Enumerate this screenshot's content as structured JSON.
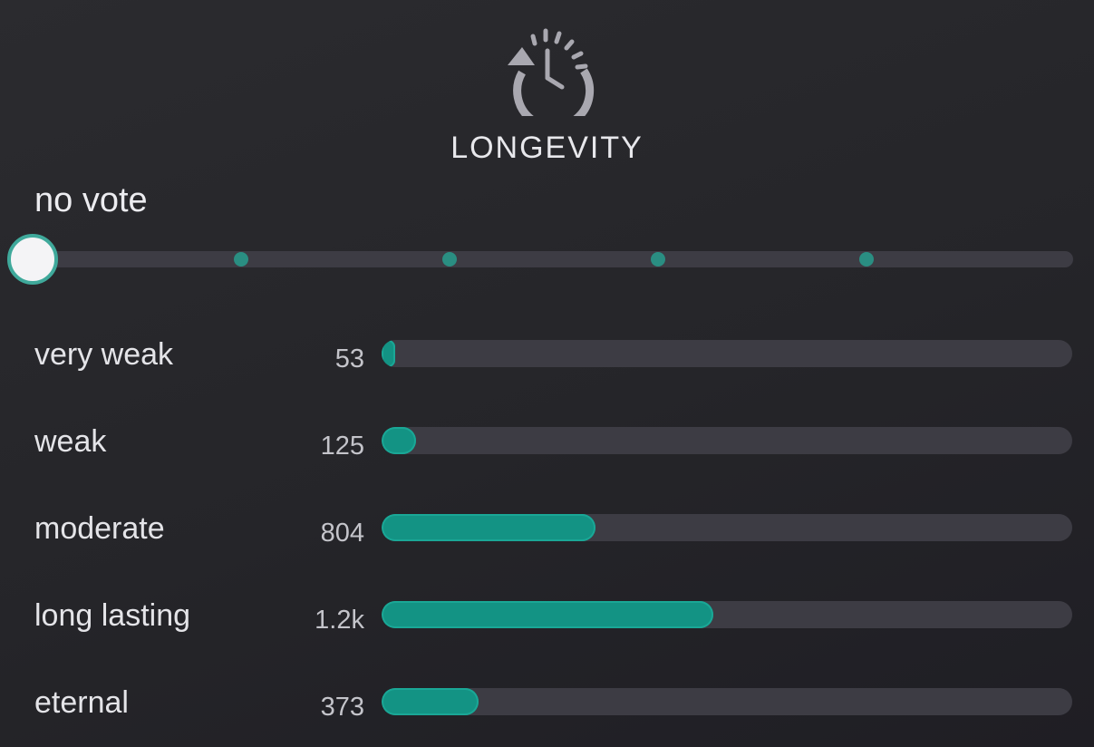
{
  "header": {
    "title": "LONGEVITY",
    "icon": "clock-refresh-icon",
    "icon_color": "#a9a8b0"
  },
  "vote": {
    "label": "no vote",
    "selected_step": 0,
    "steps": 5
  },
  "accent_color": "#139384",
  "ratings": [
    {
      "label": "very weak",
      "count": "53",
      "fill": 0.02
    },
    {
      "label": "weak",
      "count": "125",
      "fill": 0.05
    },
    {
      "label": "moderate",
      "count": "804",
      "fill": 0.31
    },
    {
      "label": "long lasting",
      "count": "1.2k",
      "fill": 0.48
    },
    {
      "label": "eternal",
      "count": "373",
      "fill": 0.14
    }
  ]
}
